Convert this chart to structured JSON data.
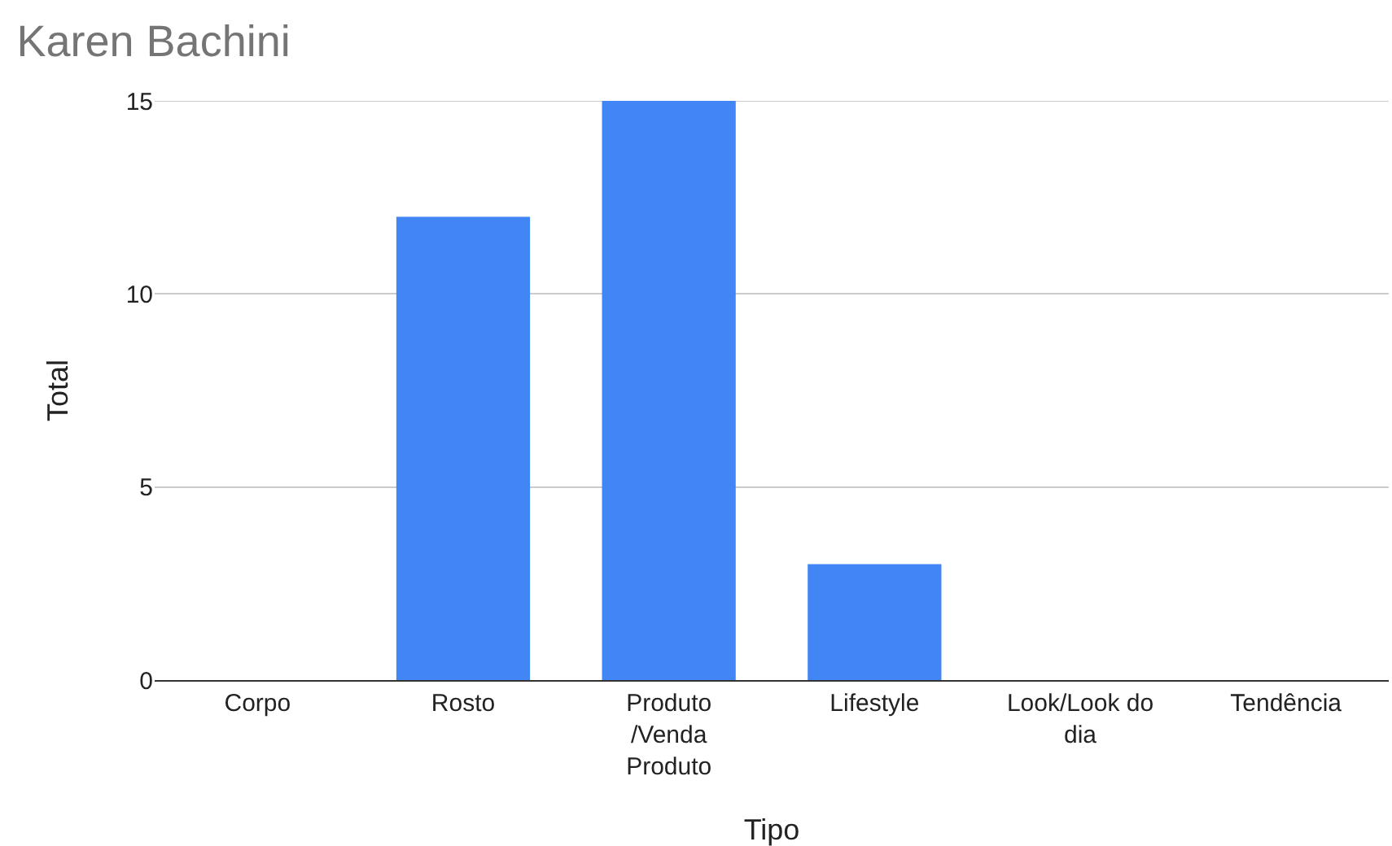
{
  "chart_data": {
    "type": "bar",
    "title": "Karen Bachini",
    "xlabel": "Tipo",
    "ylabel": "Total",
    "categories": [
      "Corpo",
      "Rosto",
      "Produto /Venda Produto",
      "Lifestyle",
      "Look/Look do dia",
      "Tendência"
    ],
    "values": [
      0,
      12,
      15,
      3,
      0,
      0
    ],
    "color": "#4285f4",
    "ylim": [
      0,
      15
    ],
    "yticks": [
      0,
      5,
      10,
      15
    ],
    "grid": "y"
  }
}
